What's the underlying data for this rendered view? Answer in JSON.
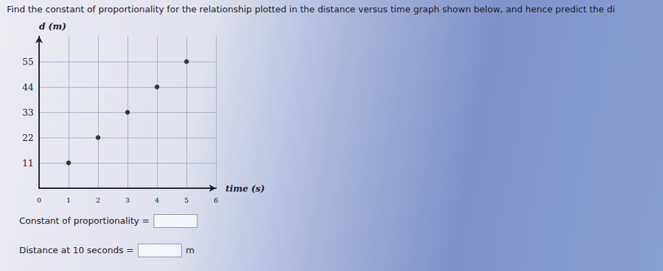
{
  "chart_data": {
    "type": "scatter",
    "title": "Find the constant of proportionality for the relationship plotted in the distance versus time graph shown below, and hence predict the di",
    "xlabel": "time (s)",
    "ylabel": "d (m)",
    "x": [
      1,
      2,
      3,
      4,
      5
    ],
    "values": [
      11,
      22,
      33,
      44,
      55
    ],
    "color": "#111111",
    "marker": "circle",
    "xlim": [
      0,
      6
    ],
    "xticks": [
      0,
      1,
      2,
      3,
      4,
      5,
      6
    ],
    "ylim": [
      0,
      66
    ],
    "yticks": [
      11,
      22,
      33,
      44,
      55
    ],
    "grid": true,
    "annotations": [
      "Constant of proportionality =",
      "Distance at 10 seconds =",
      "m"
    ]
  }
}
